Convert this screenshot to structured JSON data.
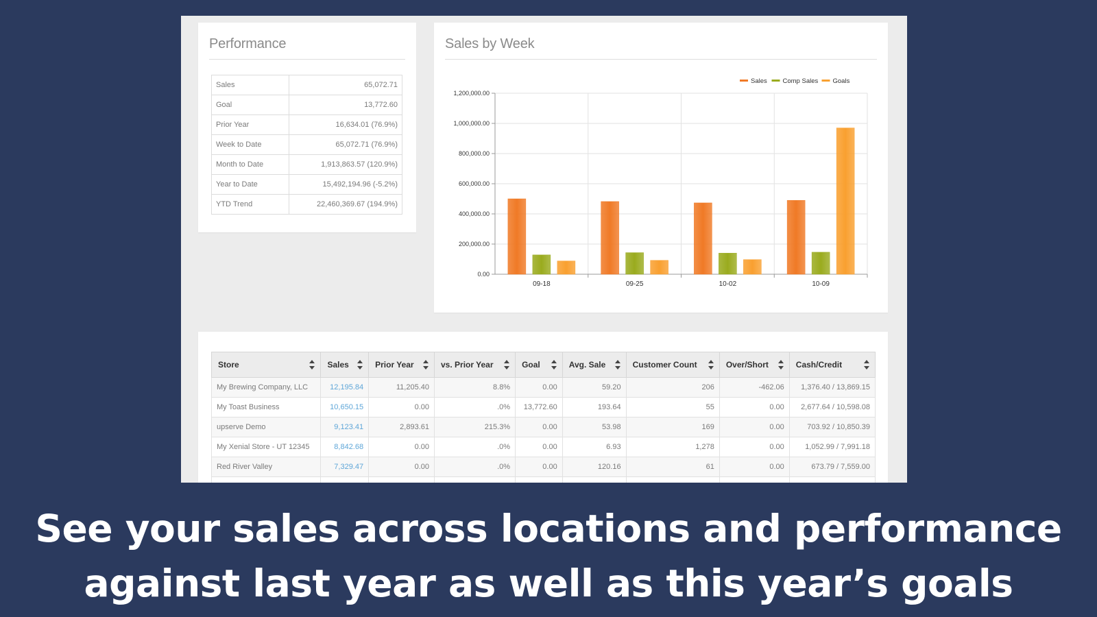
{
  "performance": {
    "title": "Performance",
    "rows": [
      {
        "label": "Sales",
        "value": "65,072.71"
      },
      {
        "label": "Goal",
        "value": "13,772.60"
      },
      {
        "label": "Prior Year",
        "value": "16,634.01 (76.9%)"
      },
      {
        "label": "Week to Date",
        "value": "65,072.71 (76.9%)"
      },
      {
        "label": "Month to Date",
        "value": "1,913,863.57 (120.9%)"
      },
      {
        "label": "Year to Date",
        "value": "15,492,194.96 (-5.2%)"
      },
      {
        "label": "YTD Trend",
        "value": "22,460,369.67 (194.9%)"
      }
    ]
  },
  "sales_chart": {
    "title": "Sales by Week"
  },
  "chart_data": {
    "type": "bar",
    "title": "Sales by Week",
    "categories": [
      "09-18",
      "09-25",
      "10-02",
      "10-09"
    ],
    "series": [
      {
        "name": "Sales",
        "values": [
          500000,
          482000,
          473000,
          490000
        ],
        "color": "#f07a26"
      },
      {
        "name": "Comp Sales",
        "values": [
          128000,
          143000,
          140000,
          146000
        ],
        "color": "#9aab1e"
      },
      {
        "name": "Goals",
        "values": [
          88000,
          92000,
          97000,
          970000
        ],
        "color": "#f9a030"
      }
    ],
    "ylim": [
      0,
      1200000
    ],
    "yticks": [
      0,
      200000,
      400000,
      600000,
      800000,
      1000000,
      1200000
    ],
    "ytick_labels": [
      "0.00",
      "200,000.00",
      "400,000.00",
      "600,000.00",
      "800,000.00",
      "1,000,000.00",
      "1,200,000.00"
    ],
    "legend_position": "top-right",
    "grid": true
  },
  "stores": {
    "headers": [
      "Store",
      "Sales",
      "Prior Year",
      "vs. Prior Year",
      "Goal",
      "Avg. Sale",
      "Customer Count",
      "Over/Short",
      "Cash/Credit"
    ],
    "rows": [
      [
        "My Brewing Company, LLC",
        "12,195.84",
        "11,205.40",
        "8.8%",
        "0.00",
        "59.20",
        "206",
        "-462.06",
        "1,376.40 / 13,869.15"
      ],
      [
        "My Toast Business",
        "10,650.15",
        "0.00",
        ".0%",
        "13,772.60",
        "193.64",
        "55",
        "0.00",
        "2,677.64 / 10,598.08"
      ],
      [
        "upserve Demo",
        "9,123.41",
        "2,893.61",
        "215.3%",
        "0.00",
        "53.98",
        "169",
        "0.00",
        "703.92 / 10,850.39"
      ],
      [
        "My Xenial Store - UT 12345",
        "8,842.68",
        "0.00",
        ".0%",
        "0.00",
        "6.93",
        "1,278",
        "0.00",
        "1,052.99 / 7,991.18"
      ],
      [
        "Red River Valley",
        "7,329.47",
        "0.00",
        ".0%",
        "0.00",
        "120.16",
        "61",
        "0.00",
        "673.79 / 7,559.00"
      ],
      [
        "",
        "",
        "",
        "",
        "",
        "",
        "",
        "",
        ""
      ]
    ]
  },
  "caption": {
    "line1": "See your sales across locations and performance",
    "line2": "against last year as well as this year’s goals"
  }
}
